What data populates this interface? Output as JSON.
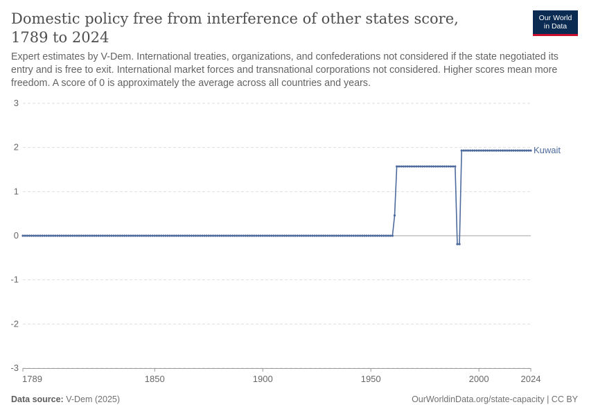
{
  "header": {
    "title": "Domestic policy free from interference of other states score, 1789 to 2024",
    "subtitle": "Expert estimates by V-Dem. International treaties, organizations, and confederations not considered if the state negotiated its entry and is free to exit. International market forces and transnational corporations not considered. Higher scores mean more freedom. A score of 0 is approximately the average across all countries and years.",
    "logo_line1": "Our World",
    "logo_line2": "in Data"
  },
  "footer": {
    "source_label": "Data source:",
    "source_value": "V-Dem (2025)",
    "url": "OurWorldinData.org/state-capacity | CC BY"
  },
  "colors": {
    "series": "#4c6a9c",
    "grid": "#dddddd",
    "zero_line": "#a0a0a0",
    "axis_text": "#666666"
  },
  "chart_data": {
    "type": "line",
    "title": "Domestic policy free from interference of other states score, 1789 to 2024",
    "xlabel": "",
    "ylabel": "",
    "xlim": [
      1789,
      2024
    ],
    "ylim": [
      -3,
      3
    ],
    "x_ticks": [
      1789,
      1850,
      1900,
      1950,
      2000,
      2024
    ],
    "y_ticks": [
      -3,
      -2,
      -1,
      0,
      1,
      2,
      3
    ],
    "grid": "horizontal dashed",
    "legend": "inline label at line end",
    "series": [
      {
        "name": "Kuwait",
        "segments": [
          {
            "from": 1789,
            "to": 1960,
            "value": 0
          },
          {
            "from": 1961,
            "to": 1961,
            "value": 0.46
          },
          {
            "from": 1962,
            "to": 1989,
            "value": 1.57
          },
          {
            "from": 1990,
            "to": 1991,
            "value": -0.19
          },
          {
            "from": 1992,
            "to": 2024,
            "value": 1.93
          }
        ]
      }
    ]
  }
}
